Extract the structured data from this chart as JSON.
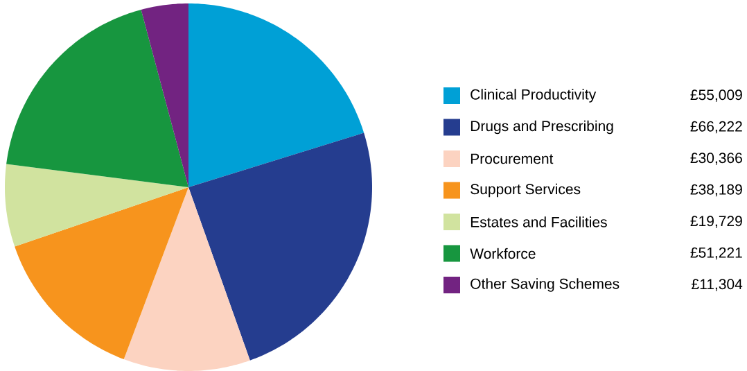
{
  "chart_data": {
    "type": "pie",
    "categories": [
      "Clinical Productivity",
      "Drugs and Prescribing",
      "Procurement",
      "Support Services",
      "Estates and Facilities",
      "Workforce",
      "Other Saving Schemes"
    ],
    "values": [
      55009,
      66222,
      30366,
      38189,
      19729,
      51221,
      11304
    ],
    "value_labels": [
      "£55,009",
      "£66,222",
      "£30,366",
      "£38,189",
      "£19,729",
      "£51,221",
      "£11,304"
    ],
    "colors": [
      "#00a0d6",
      "#253d8f",
      "#fcd3c1",
      "#f7941d",
      "#d1e39f",
      "#17963f",
      "#722381"
    ],
    "legend": "right"
  }
}
